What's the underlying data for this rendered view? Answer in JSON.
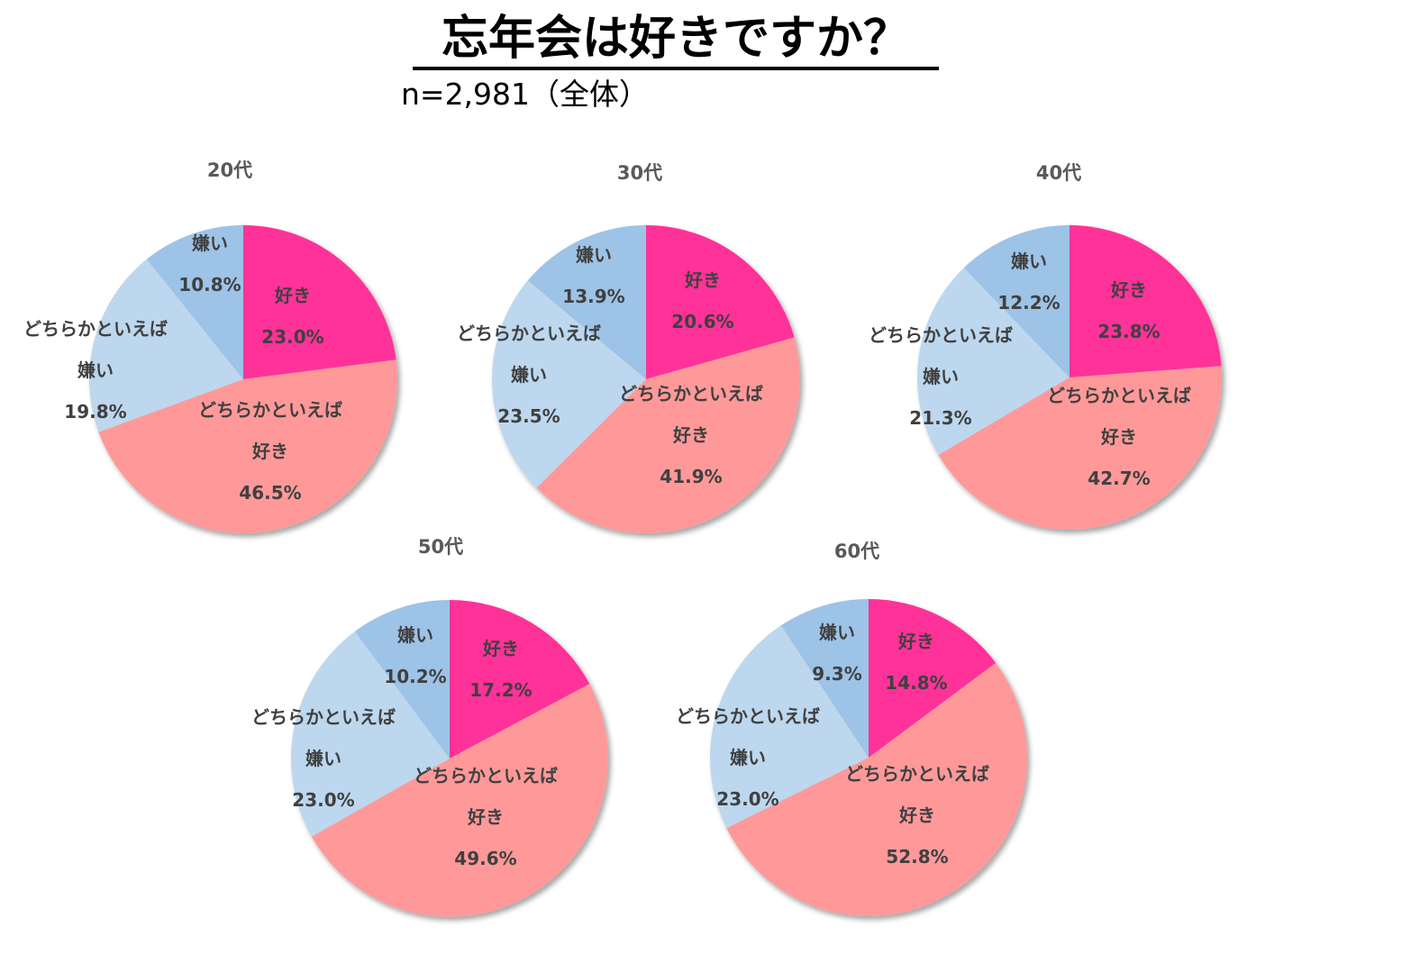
{
  "title": "忘年会は好きですか？",
  "subtitle": "n=2,981（全体）",
  "colors": {
    "好き": "#ff3399",
    "どちらかといえば好き": "#ff9999",
    "どちらかといえば嫌い": "#bdd7ee",
    "嫌い": "#9dc3e6"
  },
  "chart_data": [
    {
      "type": "pie",
      "title": "20代",
      "slices": [
        {
          "label_lines": [
            "好き"
          ],
          "value": 23.0,
          "value_label": "23.0%"
        },
        {
          "label_lines": [
            "どちらかといえば",
            "好き"
          ],
          "value": 46.5,
          "value_label": "46.5%"
        },
        {
          "label_lines": [
            "どちらかといえば",
            "嫌い"
          ],
          "value": 19.8,
          "value_label": "19.8%"
        },
        {
          "label_lines": [
            "嫌い"
          ],
          "value": 10.8,
          "value_label": "10.8%"
        }
      ]
    },
    {
      "type": "pie",
      "title": "30代",
      "slices": [
        {
          "label_lines": [
            "好き"
          ],
          "value": 20.6,
          "value_label": "20.6%"
        },
        {
          "label_lines": [
            "どちらかといえば",
            "好き"
          ],
          "value": 41.9,
          "value_label": "41.9%"
        },
        {
          "label_lines": [
            "どちらかといえば",
            "嫌い"
          ],
          "value": 23.5,
          "value_label": "23.5%"
        },
        {
          "label_lines": [
            "嫌い"
          ],
          "value": 13.9,
          "value_label": "13.9%"
        }
      ]
    },
    {
      "type": "pie",
      "title": "40代",
      "slices": [
        {
          "label_lines": [
            "好き"
          ],
          "value": 23.8,
          "value_label": "23.8%"
        },
        {
          "label_lines": [
            "どちらかといえば",
            "好き"
          ],
          "value": 42.7,
          "value_label": "42.7%"
        },
        {
          "label_lines": [
            "どちらかといえば",
            "嫌い"
          ],
          "value": 21.3,
          "value_label": "21.3%"
        },
        {
          "label_lines": [
            "嫌い"
          ],
          "value": 12.2,
          "value_label": "12.2%"
        }
      ]
    },
    {
      "type": "pie",
      "title": "50代",
      "slices": [
        {
          "label_lines": [
            "好き"
          ],
          "value": 17.2,
          "value_label": "17.2%"
        },
        {
          "label_lines": [
            "どちらかといえば",
            "好き"
          ],
          "value": 49.6,
          "value_label": "49.6%"
        },
        {
          "label_lines": [
            "どちらかといえば",
            "嫌い"
          ],
          "value": 23.0,
          "value_label": "23.0%"
        },
        {
          "label_lines": [
            "嫌い"
          ],
          "value": 10.2,
          "value_label": "10.2%"
        }
      ]
    },
    {
      "type": "pie",
      "title": "60代",
      "slices": [
        {
          "label_lines": [
            "好き"
          ],
          "value": 14.8,
          "value_label": "14.8%"
        },
        {
          "label_lines": [
            "どちらかといえば",
            "好き"
          ],
          "value": 52.8,
          "value_label": "52.8%"
        },
        {
          "label_lines": [
            "どちらかといえば",
            "嫌い"
          ],
          "value": 23.0,
          "value_label": "23.0%"
        },
        {
          "label_lines": [
            "嫌い"
          ],
          "value": 9.3,
          "value_label": "9.3%"
        }
      ]
    }
  ]
}
